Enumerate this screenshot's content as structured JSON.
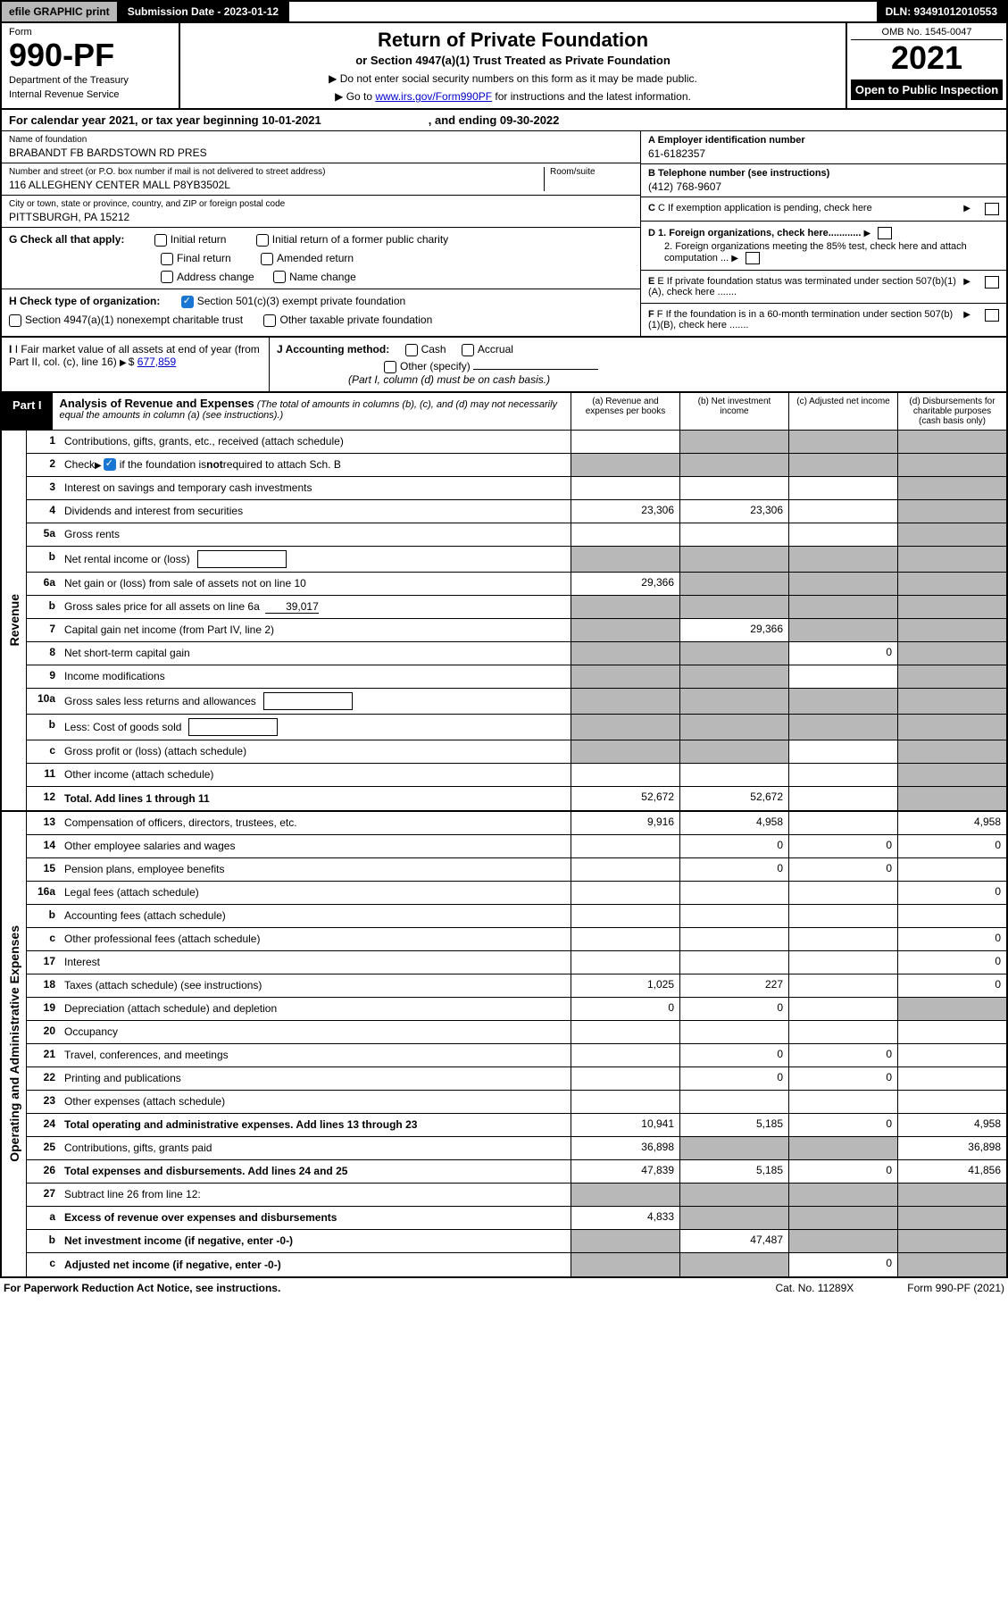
{
  "colors": {
    "black": "#000000",
    "white": "#ffffff",
    "gray_shade": "#b8b8b8",
    "link_blue": "#0000cc",
    "check_blue": "#1976d2"
  },
  "typography": {
    "base_font": "Arial, Helvetica, sans-serif",
    "base_size_pt": 9,
    "form_num_size_pt": 27,
    "year_size_pt": 27,
    "title_size_pt": 16
  },
  "topbar": {
    "efile": "efile GRAPHIC print",
    "submission": "Submission Date - 2023-01-12",
    "dln": "DLN: 93491012010553"
  },
  "header": {
    "form_label": "Form",
    "form_number": "990-PF",
    "dept1": "Department of the Treasury",
    "dept2": "Internal Revenue Service",
    "title": "Return of Private Foundation",
    "subtitle": "or Section 4947(a)(1) Trust Treated as Private Foundation",
    "instr1": "▶ Do not enter social security numbers on this form as it may be made public.",
    "instr2_pre": "▶ Go to ",
    "instr2_link": "www.irs.gov/Form990PF",
    "instr2_post": " for instructions and the latest information.",
    "omb": "OMB No. 1545-0047",
    "year": "2021",
    "open_public": "Open to Public Inspection"
  },
  "cal_year": {
    "text": "For calendar year 2021, or tax year beginning 10-01-2021",
    "end": ", and ending 09-30-2022"
  },
  "entity": {
    "name_label": "Name of foundation",
    "name": "BRABANDT FB BARDSTOWN RD PRES",
    "addr_label": "Number and street (or P.O. box number if mail is not delivered to street address)",
    "room_label": "Room/suite",
    "addr": "116 ALLEGHENY CENTER MALL P8YB3502L",
    "city_label": "City or town, state or province, country, and ZIP or foreign postal code",
    "city": "PITTSBURGH, PA  15212",
    "ein_label": "A Employer identification number",
    "ein": "61-6182357",
    "phone_label": "B Telephone number (see instructions)",
    "phone": "(412) 768-9607",
    "c_label": "C If exemption application is pending, check here",
    "d1": "D 1. Foreign organizations, check here............",
    "d2": "2. Foreign organizations meeting the 85% test, check here and attach computation ...",
    "e_label": "E If private foundation status was terminated under section 507(b)(1)(A), check here .......",
    "f_label": "F If the foundation is in a 60-month termination under section 507(b)(1)(B), check here .......",
    "g_label": "G Check all that apply:",
    "g_opts": {
      "initial": "Initial return",
      "initial_former": "Initial return of a former public charity",
      "final": "Final return",
      "amended": "Amended return",
      "addr_change": "Address change",
      "name_change": "Name change"
    },
    "h_label": "H Check type of organization:",
    "h_501c3": "Section 501(c)(3) exempt private foundation",
    "h_4947": "Section 4947(a)(1) nonexempt charitable trust",
    "h_other_tax": "Other taxable private foundation",
    "i_label": "I Fair market value of all assets at end of year (from Part II, col. (c), line 16)",
    "i_val": "677,859",
    "j_label": "J Accounting method:",
    "j_cash": "Cash",
    "j_accrual": "Accrual",
    "j_other": "Other (specify)",
    "j_note": "(Part I, column (d) must be on cash basis.)"
  },
  "part1": {
    "label": "Part I",
    "title": "Analysis of Revenue and Expenses",
    "note": "(The total of amounts in columns (b), (c), and (d) may not necessarily equal the amounts in column (a) (see instructions).)",
    "col_a": "(a) Revenue and expenses per books",
    "col_b": "(b) Net investment income",
    "col_c": "(c) Adjusted net income",
    "col_d": "(d) Disbursements for charitable purposes (cash basis only)"
  },
  "side_labels": {
    "revenue": "Revenue",
    "expenses": "Operating and Administrative Expenses"
  },
  "rows": [
    {
      "n": "1",
      "d": "Contributions, gifts, grants, etc., received (attach schedule)",
      "a": "",
      "b": "s",
      "c": "s",
      "x": "s"
    },
    {
      "n": "2",
      "d": "Check ▶ ☑ if the foundation is not required to attach Sch. B",
      "a": "s",
      "b": "s",
      "c": "s",
      "x": "s",
      "checkbox": true
    },
    {
      "n": "3",
      "d": "Interest on savings and temporary cash investments",
      "a": "",
      "b": "",
      "c": "",
      "x": "s"
    },
    {
      "n": "4",
      "d": "Dividends and interest from securities",
      "a": "23,306",
      "b": "23,306",
      "c": "",
      "x": "s"
    },
    {
      "n": "5a",
      "d": "Gross rents",
      "a": "",
      "b": "",
      "c": "",
      "x": "s"
    },
    {
      "n": "b",
      "d": "Net rental income or (loss)",
      "a": "s",
      "b": "s",
      "c": "s",
      "x": "s",
      "inlinebox": true
    },
    {
      "n": "6a",
      "d": "Net gain or (loss) from sale of assets not on line 10",
      "a": "29,366",
      "b": "s",
      "c": "s",
      "x": "s"
    },
    {
      "n": "b",
      "d": "Gross sales price for all assets on line 6a",
      "a": "s",
      "b": "s",
      "c": "s",
      "x": "s",
      "inlineval": "39,017"
    },
    {
      "n": "7",
      "d": "Capital gain net income (from Part IV, line 2)",
      "a": "s",
      "b": "29,366",
      "c": "s",
      "x": "s"
    },
    {
      "n": "8",
      "d": "Net short-term capital gain",
      "a": "s",
      "b": "s",
      "c": "0",
      "x": "s"
    },
    {
      "n": "9",
      "d": "Income modifications",
      "a": "s",
      "b": "s",
      "c": "",
      "x": "s"
    },
    {
      "n": "10a",
      "d": "Gross sales less returns and allowances",
      "a": "s",
      "b": "s",
      "c": "s",
      "x": "s",
      "inlinebox": true
    },
    {
      "n": "b",
      "d": "Less: Cost of goods sold",
      "a": "s",
      "b": "s",
      "c": "s",
      "x": "s",
      "inlinebox": true
    },
    {
      "n": "c",
      "d": "Gross profit or (loss) (attach schedule)",
      "a": "s",
      "b": "s",
      "c": "",
      "x": "s"
    },
    {
      "n": "11",
      "d": "Other income (attach schedule)",
      "a": "",
      "b": "",
      "c": "",
      "x": "s"
    },
    {
      "n": "12",
      "d": "Total. Add lines 1 through 11",
      "a": "52,672",
      "b": "52,672",
      "c": "",
      "x": "s",
      "bold": true
    }
  ],
  "exp_rows": [
    {
      "n": "13",
      "d": "Compensation of officers, directors, trustees, etc.",
      "a": "9,916",
      "b": "4,958",
      "c": "",
      "x": "4,958"
    },
    {
      "n": "14",
      "d": "Other employee salaries and wages",
      "a": "",
      "b": "0",
      "c": "0",
      "x": "0"
    },
    {
      "n": "15",
      "d": "Pension plans, employee benefits",
      "a": "",
      "b": "0",
      "c": "0",
      "x": ""
    },
    {
      "n": "16a",
      "d": "Legal fees (attach schedule)",
      "a": "",
      "b": "",
      "c": "",
      "x": "0"
    },
    {
      "n": "b",
      "d": "Accounting fees (attach schedule)",
      "a": "",
      "b": "",
      "c": "",
      "x": ""
    },
    {
      "n": "c",
      "d": "Other professional fees (attach schedule)",
      "a": "",
      "b": "",
      "c": "",
      "x": "0"
    },
    {
      "n": "17",
      "d": "Interest",
      "a": "",
      "b": "",
      "c": "",
      "x": "0"
    },
    {
      "n": "18",
      "d": "Taxes (attach schedule) (see instructions)",
      "a": "1,025",
      "b": "227",
      "c": "",
      "x": "0"
    },
    {
      "n": "19",
      "d": "Depreciation (attach schedule) and depletion",
      "a": "0",
      "b": "0",
      "c": "",
      "x": "s"
    },
    {
      "n": "20",
      "d": "Occupancy",
      "a": "",
      "b": "",
      "c": "",
      "x": ""
    },
    {
      "n": "21",
      "d": "Travel, conferences, and meetings",
      "a": "",
      "b": "0",
      "c": "0",
      "x": ""
    },
    {
      "n": "22",
      "d": "Printing and publications",
      "a": "",
      "b": "0",
      "c": "0",
      "x": ""
    },
    {
      "n": "23",
      "d": "Other expenses (attach schedule)",
      "a": "",
      "b": "",
      "c": "",
      "x": ""
    },
    {
      "n": "24",
      "d": "Total operating and administrative expenses. Add lines 13 through 23",
      "a": "10,941",
      "b": "5,185",
      "c": "0",
      "x": "4,958",
      "bold": true
    },
    {
      "n": "25",
      "d": "Contributions, gifts, grants paid",
      "a": "36,898",
      "b": "s",
      "c": "s",
      "x": "36,898"
    },
    {
      "n": "26",
      "d": "Total expenses and disbursements. Add lines 24 and 25",
      "a": "47,839",
      "b": "5,185",
      "c": "0",
      "x": "41,856",
      "bold": true
    },
    {
      "n": "27",
      "d": "Subtract line 26 from line 12:",
      "a": "s",
      "b": "s",
      "c": "s",
      "x": "s"
    },
    {
      "n": "a",
      "d": "Excess of revenue over expenses and disbursements",
      "a": "4,833",
      "b": "s",
      "c": "s",
      "x": "s",
      "bold": true
    },
    {
      "n": "b",
      "d": "Net investment income (if negative, enter -0-)",
      "a": "s",
      "b": "47,487",
      "c": "s",
      "x": "s",
      "bold": true
    },
    {
      "n": "c",
      "d": "Adjusted net income (if negative, enter -0-)",
      "a": "s",
      "b": "s",
      "c": "0",
      "x": "s",
      "bold": true
    }
  ],
  "footer": {
    "left": "For Paperwork Reduction Act Notice, see instructions.",
    "mid": "Cat. No. 11289X",
    "right": "Form 990-PF (2021)"
  }
}
